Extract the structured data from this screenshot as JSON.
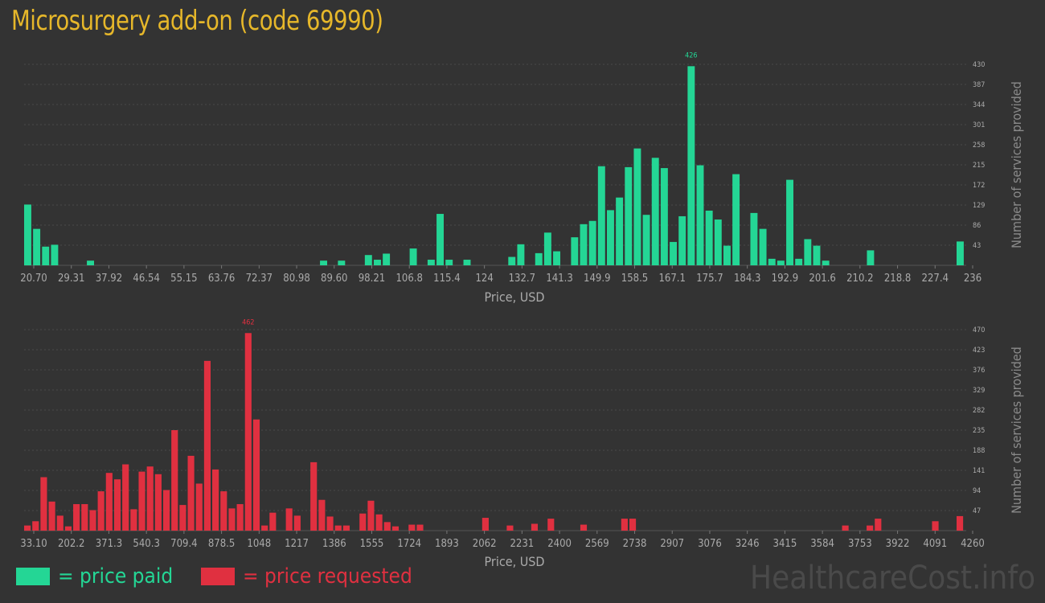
{
  "title": "Microsurgery add-on (code 69990)",
  "watermark": "HealthcareCost.info",
  "legend": {
    "paid_label": "= price paid",
    "requested_label": "= price requested",
    "paid_color": "#24d695",
    "requested_color": "#e03040"
  },
  "colors": {
    "background": "#333333",
    "grid": "#4a4a4a",
    "axis_text": "#aaaaaa",
    "title": "#e6b72a"
  },
  "chart_data": [
    {
      "type": "bar",
      "series_name": "price paid",
      "color": "#24d695",
      "xlabel": "Price, USD",
      "ylabel": "Number of services provided",
      "ylim": [
        0,
        430
      ],
      "yticks": [
        43,
        86,
        129,
        172,
        215,
        258,
        301,
        344,
        387,
        430
      ],
      "xtick_labels": [
        "20.70",
        "29.31",
        "37.92",
        "46.54",
        "55.15",
        "63.76",
        "72.37",
        "80.98",
        "89.60",
        "98.21",
        "106.8",
        "115.4",
        "124",
        "132.7",
        "141.3",
        "149.9",
        "158.5",
        "167.1",
        "175.7",
        "184.3",
        "192.9",
        "201.6",
        "210.2",
        "218.8",
        "227.4",
        "236"
      ],
      "peak_label": "426",
      "values": [
        130,
        78,
        40,
        44,
        0,
        0,
        0,
        10,
        0,
        0,
        0,
        0,
        0,
        0,
        0,
        0,
        0,
        0,
        0,
        0,
        0,
        0,
        0,
        0,
        0,
        0,
        0,
        0,
        0,
        0,
        0,
        0,
        0,
        10,
        0,
        10,
        0,
        0,
        22,
        12,
        25,
        0,
        0,
        36,
        0,
        12,
        110,
        12,
        0,
        12,
        0,
        0,
        0,
        0,
        18,
        45,
        0,
        26,
        70,
        30,
        0,
        60,
        88,
        95,
        212,
        118,
        145,
        210,
        250,
        108,
        230,
        208,
        50,
        105,
        426,
        214,
        117,
        98,
        42,
        195,
        0,
        112,
        78,
        14,
        10,
        183,
        14,
        56,
        42,
        10,
        0,
        0,
        0,
        0,
        32,
        0,
        0,
        0,
        0,
        0,
        0,
        0,
        0,
        0,
        51
      ],
      "peak_index": 74
    },
    {
      "type": "bar",
      "series_name": "price requested",
      "color": "#e03040",
      "xlabel": "Price, USD",
      "ylabel": "Number of services provided",
      "ylim": [
        0,
        470
      ],
      "yticks": [
        47,
        94,
        141,
        188,
        235,
        282,
        329,
        376,
        423,
        470
      ],
      "xtick_labels": [
        "33.10",
        "202.2",
        "371.3",
        "540.3",
        "709.4",
        "878.5",
        "1048",
        "1217",
        "1386",
        "1555",
        "1724",
        "1893",
        "2062",
        "2231",
        "2400",
        "2569",
        "2738",
        "2907",
        "3076",
        "3246",
        "3415",
        "3584",
        "3753",
        "3922",
        "4091",
        "4260"
      ],
      "peak_label": "462",
      "values": [
        12,
        22,
        125,
        68,
        35,
        10,
        62,
        62,
        48,
        92,
        135,
        120,
        155,
        50,
        138,
        150,
        132,
        95,
        235,
        60,
        175,
        110,
        397,
        143,
        92,
        52,
        62,
        462,
        260,
        12,
        42,
        0,
        52,
        35,
        0,
        160,
        72,
        33,
        12,
        12,
        0,
        40,
        70,
        38,
        20,
        10,
        0,
        14,
        14,
        0,
        0,
        0,
        0,
        0,
        0,
        0,
        30,
        0,
        0,
        12,
        0,
        0,
        16,
        0,
        28,
        0,
        0,
        0,
        14,
        0,
        0,
        0,
        0,
        28,
        28,
        0,
        0,
        0,
        0,
        0,
        0,
        0,
        0,
        0,
        0,
        0,
        0,
        0,
        0,
        0,
        0,
        0,
        0,
        0,
        0,
        0,
        0,
        0,
        0,
        0,
        12,
        0,
        0,
        12,
        28,
        0,
        0,
        0,
        0,
        0,
        0,
        22,
        0,
        0,
        34
      ],
      "peak_index": 27
    }
  ]
}
